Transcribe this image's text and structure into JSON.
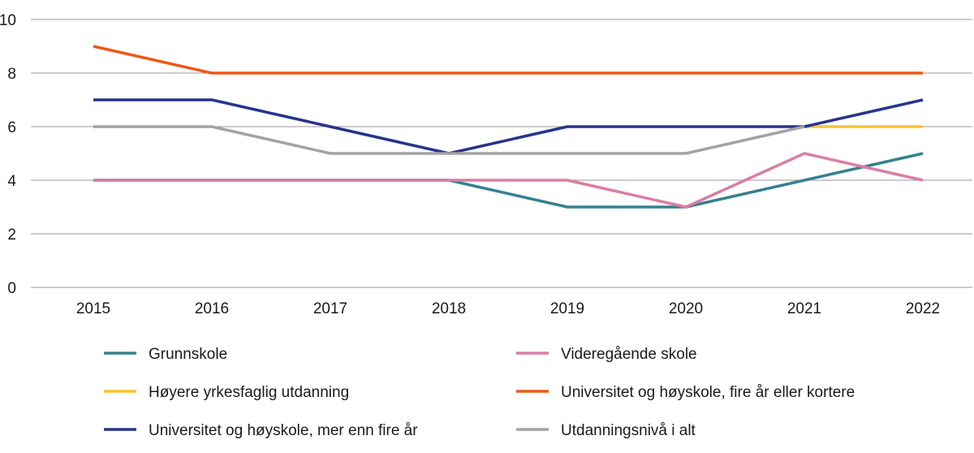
{
  "chart_data": {
    "type": "line",
    "title": "",
    "xlabel": "",
    "ylabel": "",
    "x": [
      "2015",
      "2016",
      "2017",
      "2018",
      "2019",
      "2020",
      "2021",
      "2022"
    ],
    "ylim": [
      0,
      10
    ],
    "yticks": [
      0,
      2,
      4,
      6,
      8,
      10
    ],
    "grid": true,
    "legend_position": "bottom",
    "series": [
      {
        "name": "Grunnskole",
        "color": "#35818f",
        "values": [
          4,
          4,
          4,
          4,
          3,
          3,
          4,
          5
        ]
      },
      {
        "name": "Videregående skole",
        "color": "#d97ea6",
        "values": [
          4,
          4,
          4,
          4,
          4,
          3,
          5,
          4
        ]
      },
      {
        "name": "Høyere yrkesfaglig utdanning",
        "color": "#f7c431",
        "values": [
          null,
          null,
          null,
          null,
          null,
          null,
          6,
          6
        ]
      },
      {
        "name": "Universitet og høyskole, fire år eller kortere",
        "color": "#ec5a17",
        "values": [
          9,
          8,
          8,
          8,
          8,
          8,
          8,
          8
        ]
      },
      {
        "name": "Universitet og høyskole, mer enn fire år",
        "color": "#26348c",
        "values": [
          7,
          7,
          6,
          5,
          6,
          6,
          6,
          7
        ]
      },
      {
        "name": "Utdanningsnivå i alt",
        "color": "#a3a3a3",
        "values": [
          6,
          6,
          5,
          5,
          5,
          5,
          6,
          null
        ]
      }
    ]
  }
}
